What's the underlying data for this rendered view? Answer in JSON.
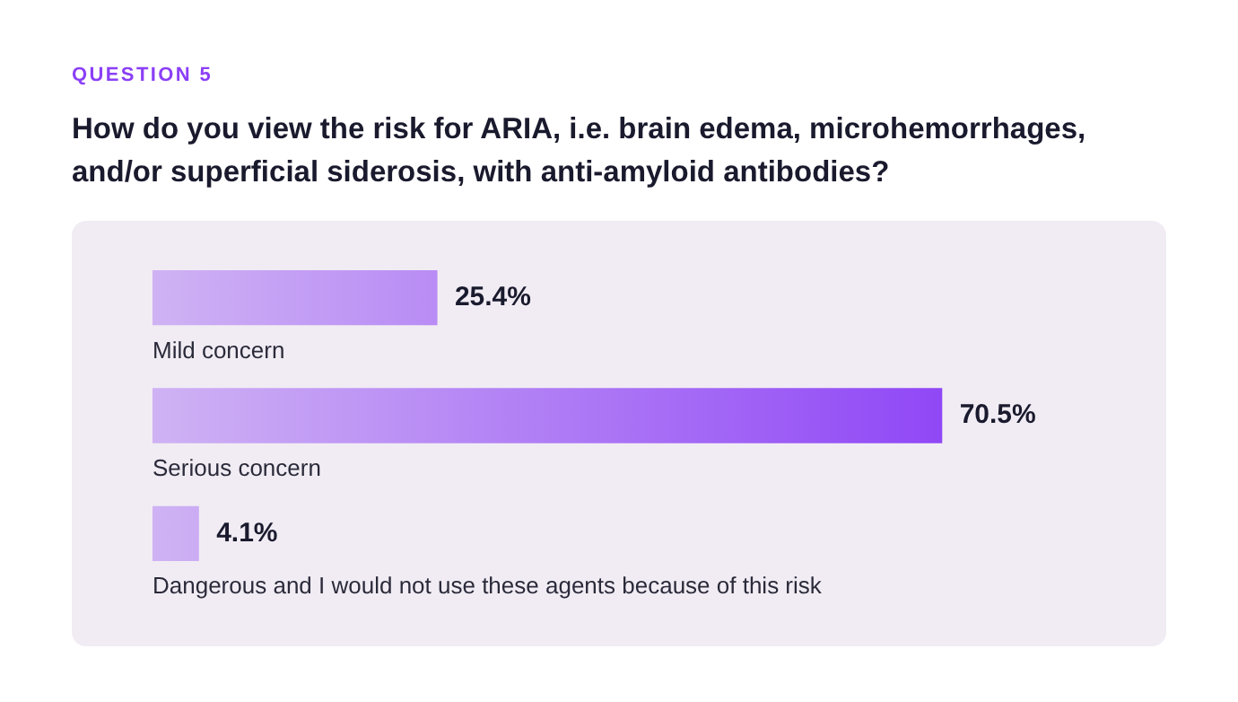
{
  "chart_data": {
    "type": "bar",
    "orientation": "horizontal",
    "subtitle": "QUESTION 5",
    "title": "How do you view the risk for ARIA, i.e. brain edema, microhemorrhages, and/or superficial siderosis, with anti-amyloid antibodies?",
    "categories": [
      "Mild concern",
      "Serious concern",
      "Dangerous and I would not use these agents because of this risk"
    ],
    "values": [
      25.4,
      70.5,
      4.1
    ],
    "color": "#8b3ff6",
    "value_labels": [
      "25.4%",
      "70.5%",
      "4.1%"
    ],
    "legend": false
  }
}
